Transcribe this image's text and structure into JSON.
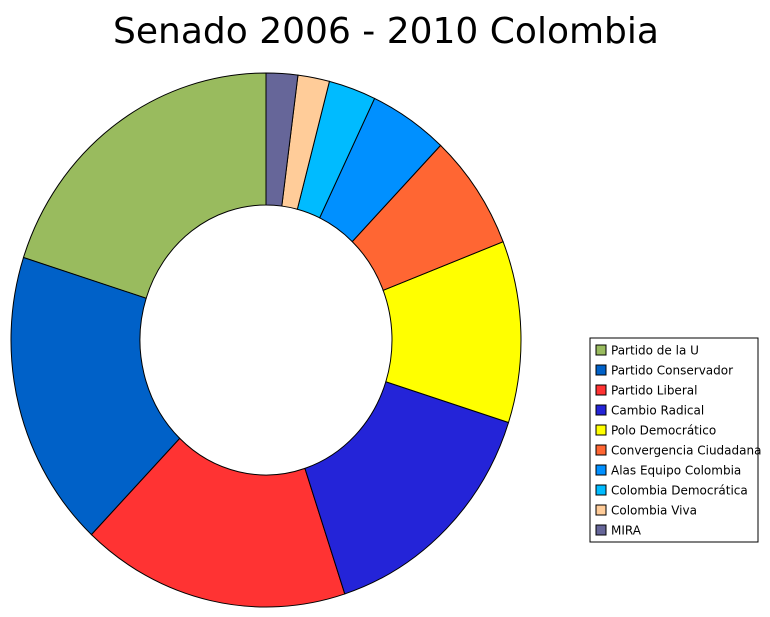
{
  "chart_data": {
    "type": "donut",
    "title": "Senado 2006 - 2010 Colombia",
    "categories": [
      "Partido de la U",
      "Partido Conservador",
      "Partido Liberal",
      "Cambio Radical",
      "Polo Democrático",
      "Convergencia Ciudadana",
      "Alas Equipo Colombia",
      "Colombia Democrática",
      "Colombia Viva",
      "MIRA"
    ],
    "values": [
      20,
      18,
      17,
      15,
      11,
      7,
      5,
      3,
      2,
      2
    ],
    "colors": [
      "#99bb5e",
      "#0061c8",
      "#ff3333",
      "#2424d8",
      "#ffff00",
      "#ff6633",
      "#0090ff",
      "#00bbff",
      "#ffcc99",
      "#666699"
    ]
  }
}
